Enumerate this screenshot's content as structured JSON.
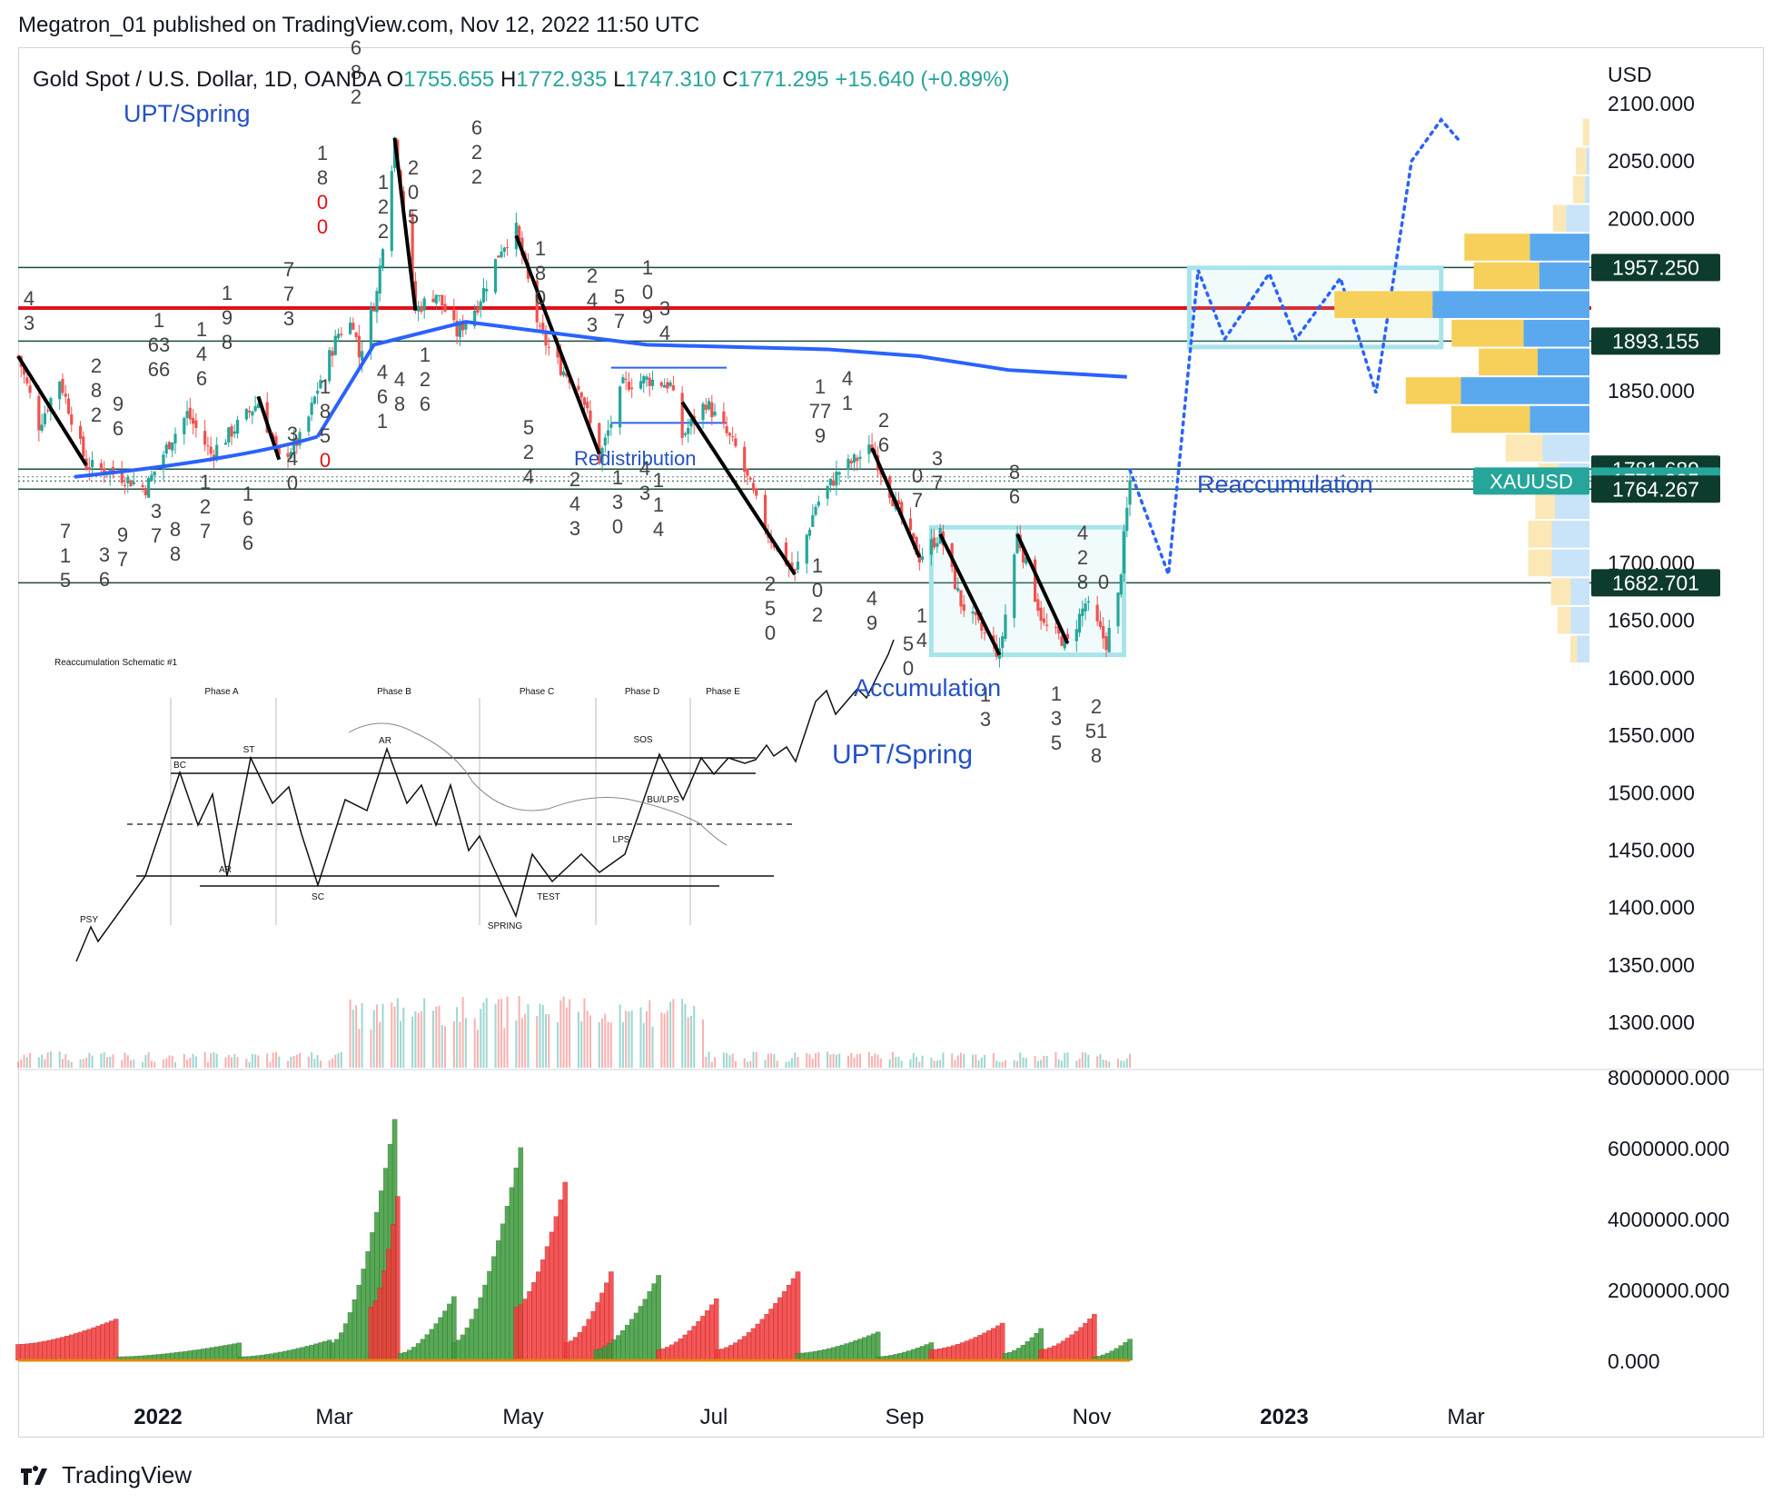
{
  "publish_line": "Megatron_01 published on TradingView.com, Nov 12, 2022 11:50 UTC",
  "symbol": {
    "name": "Gold Spot / U.S. Dollar, 1D, OANDA",
    "open_label": "O",
    "open": "1755.655",
    "high_label": "H",
    "high": "1772.935",
    "low_label": "L",
    "low": "1747.310",
    "close_label": "C",
    "close": "1771.295",
    "change": "+15.640 (+0.89%)"
  },
  "currency": "USD",
  "colors": {
    "up": "#26a69a",
    "down": "#ef5350",
    "accent_blue": "#2962ff",
    "label_bg": "#0d3b2e",
    "resistance_red": "#e0101a",
    "box_cyan": "#a8e4ea"
  },
  "price_axis": {
    "ticks": [
      "2100.000",
      "2050.000",
      "2000.000",
      "1850.000",
      "1700.000",
      "1650.000",
      "1600.000",
      "1550.000",
      "1500.000",
      "1450.000",
      "1400.000",
      "1350.000",
      "1300.000"
    ],
    "tags": [
      {
        "value": "1957.250"
      },
      {
        "value": "1893.155"
      },
      {
        "value": "1781.689"
      },
      {
        "value": "1771.295",
        "symbol": "XAUUSD"
      },
      {
        "value": "1764.267"
      },
      {
        "value": "1682.701"
      }
    ]
  },
  "volume_axis": {
    "ticks": [
      "8000000.000",
      "6000000.000",
      "4000000.000",
      "2000000.000",
      "0.000"
    ]
  },
  "time_axis": [
    {
      "label": "2022",
      "bold": true
    },
    {
      "label": "Mar",
      "bold": false
    },
    {
      "label": "May",
      "bold": false
    },
    {
      "label": "Jul",
      "bold": false
    },
    {
      "label": "Sep",
      "bold": false
    },
    {
      "label": "Nov",
      "bold": false
    },
    {
      "label": "2023",
      "bold": true
    },
    {
      "label": "Mar",
      "bold": false
    }
  ],
  "annotations": {
    "upt_spring_top": "UPT/Spring",
    "redistribution": "Redistribution",
    "reaccumulation": "Reaccumulation",
    "accumulation": "Accumulation",
    "upt_spring_bottom": "UPT/Spring"
  },
  "schematic": {
    "title": "Reaccumulation Schematic #1",
    "phases": [
      "Phase A",
      "Phase B",
      "Phase C",
      "Phase D",
      "Phase E"
    ],
    "labels": [
      "PSY",
      "BC",
      "ST",
      "AR",
      "AR",
      "SC",
      "SPRING",
      "TEST",
      "LPS",
      "BU/LPS",
      "SOS"
    ]
  },
  "wave_counts": [
    "4\n3",
    "6\n8\n2",
    "1\n8\n0\n0",
    "1\n2\n2",
    "2\n0\n5",
    "6\n2\n2",
    "7\n7\n3",
    "1\n63\n66",
    "1\n4\n6",
    "1\n9\n8",
    "2\n8\n2",
    "9\n6",
    "1\n8\n5\n0",
    "3\n4\n0",
    "4\n6\n1",
    "4\n8",
    "1\n2\n6",
    "1\n8\n0",
    "2\n4\n3",
    "5\n7",
    "1\n0\n9",
    "3\n4",
    "5\n2\n4",
    "2\n4\n3",
    "1\n3\n0",
    "4\n3",
    "1\n1\n4",
    "7\n1\n5",
    "3\n6",
    "9\n7",
    "3\n7",
    "8\n8",
    "1\n2\n7",
    "1\n6\n6",
    "2\n5\n0",
    "1\n0\n2",
    "1\n77\n9",
    "4\n1",
    "2\n6",
    "4\n9",
    "0\n7",
    "3\n7",
    "5\n0",
    "1\n4",
    "8\n6",
    "4\n2\n8",
    "0",
    "1\n3",
    "1\n3\n5",
    "2\n51\n8"
  ],
  "footer": "TradingView",
  "chart_data": {
    "type": "candlestick",
    "title": "Gold Spot / U.S. Dollar, 1D, OANDA",
    "ylabel": "USD",
    "ylim": [
      1265,
      2125
    ],
    "x_range": [
      "2021-11-01",
      "2023-04-15"
    ],
    "ohlc_last": {
      "open": 1755.655,
      "high": 1772.935,
      "low": 1747.31,
      "close": 1771.295,
      "change": 15.64,
      "change_pct": 0.89
    },
    "price_path": [
      [
        "2021-11-01",
        1880
      ],
      [
        "2021-11-08",
        1820
      ],
      [
        "2021-11-15",
        1860
      ],
      [
        "2021-11-24",
        1785
      ],
      [
        "2021-12-02",
        1780
      ],
      [
        "2021-12-14",
        1765
      ],
      [
        "2021-12-22",
        1805
      ],
      [
        "2021-12-28",
        1830
      ],
      [
        "2022-01-05",
        1795
      ],
      [
        "2022-01-14",
        1820
      ],
      [
        "2022-01-21",
        1840
      ],
      [
        "2022-01-28",
        1790
      ],
      [
        "2022-02-05",
        1810
      ],
      [
        "2022-02-11",
        1860
      ],
      [
        "2022-02-17",
        1900
      ],
      [
        "2022-02-22",
        1910
      ],
      [
        "2022-02-24",
        1880
      ],
      [
        "2022-03-02",
        1935
      ],
      [
        "2022-03-08",
        2070
      ],
      [
        "2022-03-15",
        1920
      ],
      [
        "2022-03-22",
        1935
      ],
      [
        "2022-03-29",
        1900
      ],
      [
        "2022-04-05",
        1925
      ],
      [
        "2022-04-13",
        1975
      ],
      [
        "2022-04-18",
        1990
      ],
      [
        "2022-04-26",
        1900
      ],
      [
        "2022-05-03",
        1870
      ],
      [
        "2022-05-10",
        1850
      ],
      [
        "2022-05-16",
        1790
      ],
      [
        "2022-05-24",
        1855
      ],
      [
        "2022-06-01",
        1860
      ],
      [
        "2022-06-09",
        1855
      ],
      [
        "2022-06-13",
        1810
      ],
      [
        "2022-06-21",
        1840
      ],
      [
        "2022-07-01",
        1800
      ],
      [
        "2022-07-12",
        1725
      ],
      [
        "2022-07-21",
        1690
      ],
      [
        "2022-07-28",
        1750
      ],
      [
        "2022-08-05",
        1780
      ],
      [
        "2022-08-16",
        1800
      ],
      [
        "2022-08-24",
        1750
      ],
      [
        "2022-09-01",
        1705
      ],
      [
        "2022-09-08",
        1725
      ],
      [
        "2022-09-15",
        1665
      ],
      [
        "2022-09-28",
        1620
      ],
      [
        "2022-10-04",
        1725
      ],
      [
        "2022-10-13",
        1645
      ],
      [
        "2022-10-21",
        1630
      ],
      [
        "2022-10-27",
        1665
      ],
      [
        "2022-11-03",
        1630
      ],
      [
        "2022-11-07",
        1670
      ],
      [
        "2022-11-11",
        1771.295
      ]
    ],
    "horizontal_levels": [
      1957.25,
      1893.155,
      1781.689,
      1771.295,
      1764.267,
      1682.701
    ],
    "resistance_level": 1922,
    "moving_average": [
      [
        "2022-02-10",
        1810
      ],
      [
        "2022-03-01",
        1890
      ],
      [
        "2022-04-01",
        1910
      ],
      [
        "2022-05-01",
        1900
      ],
      [
        "2022-06-01",
        1890
      ],
      [
        "2022-07-01",
        1888
      ],
      [
        "2022-08-01",
        1886
      ],
      [
        "2022-09-01",
        1880
      ],
      [
        "2022-10-01",
        1868
      ],
      [
        "2022-11-10",
        1862
      ]
    ],
    "projection": [
      [
        "2022-11-11",
        1781
      ],
      [
        "2022-11-24",
        1690
      ],
      [
        "2022-12-04",
        1955
      ],
      [
        "2022-12-13",
        1895
      ],
      [
        "2022-12-28",
        1952
      ],
      [
        "2023-01-06",
        1895
      ],
      [
        "2023-01-21",
        1948
      ],
      [
        "2023-02-02",
        1848
      ],
      [
        "2023-02-14",
        2050
      ],
      [
        "2023-02-24",
        2086
      ],
      [
        "2023-03-02",
        2068
      ]
    ],
    "volume_axis": {
      "ylim": [
        0,
        8000000
      ]
    },
    "volume_profile_bins": [
      {
        "price": 2075,
        "buy": 0.05,
        "sell": 0.0
      },
      {
        "price": 2050,
        "buy": 0.08,
        "sell": 0.02
      },
      {
        "price": 2025,
        "buy": 0.09,
        "sell": 0.03
      },
      {
        "price": 2000,
        "buy": 0.1,
        "sell": 0.15
      },
      {
        "price": 1975,
        "buy": 0.5,
        "sell": 0.38
      },
      {
        "price": 1950,
        "buy": 0.5,
        "sell": 0.32
      },
      {
        "price": 1925,
        "buy": 0.75,
        "sell": 1.0
      },
      {
        "price": 1900,
        "buy": 0.55,
        "sell": 0.42
      },
      {
        "price": 1875,
        "buy": 0.45,
        "sell": 0.33
      },
      {
        "price": 1850,
        "buy": 0.42,
        "sell": 0.82
      },
      {
        "price": 1825,
        "buy": 0.6,
        "sell": 0.38
      },
      {
        "price": 1800,
        "buy": 0.28,
        "sell": 0.3
      },
      {
        "price": 1775,
        "buy": 0.15,
        "sell": 0.2
      },
      {
        "price": 1750,
        "buy": 0.15,
        "sell": 0.22
      },
      {
        "price": 1725,
        "buy": 0.18,
        "sell": 0.24
      },
      {
        "price": 1700,
        "buy": 0.18,
        "sell": 0.24
      },
      {
        "price": 1675,
        "buy": 0.15,
        "sell": 0.12
      },
      {
        "price": 1650,
        "buy": 0.1,
        "sell": 0.12
      },
      {
        "price": 1625,
        "buy": 0.05,
        "sell": 0.08
      }
    ]
  }
}
